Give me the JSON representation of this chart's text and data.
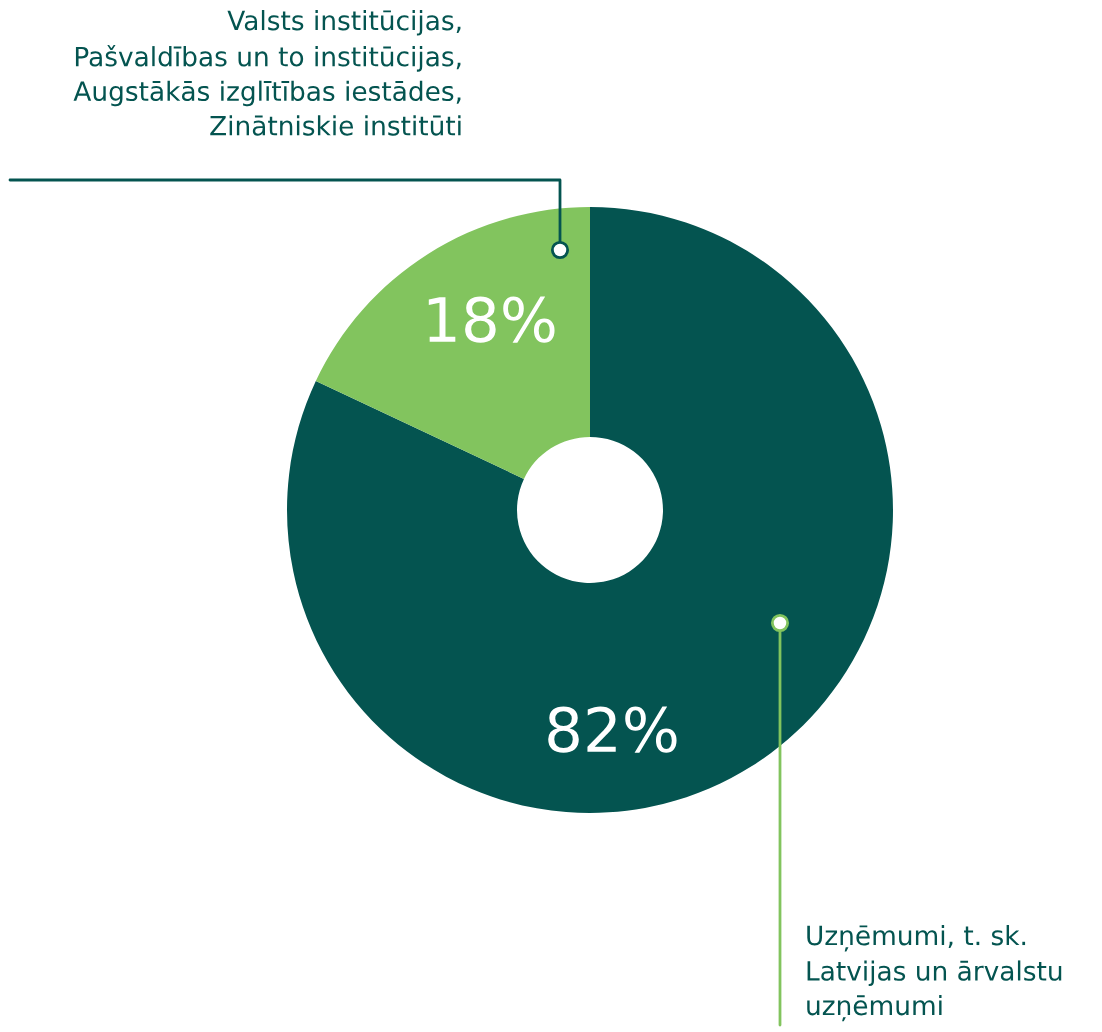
{
  "chart_data": {
    "type": "donut",
    "categories": [
      "Uzņēmumi, t. sk.\nLatvijas un ārvalstu\nuzņēmumi",
      "Valsts institūcijas,\nPašvaldības un to institūcijas,\nAugstākās izglītības iestādes,\nZinātniskie institūti"
    ],
    "values": [
      82,
      18
    ],
    "colors": [
      "#045450",
      "#82c45e"
    ],
    "value_labels": [
      "82%",
      "18%"
    ]
  }
}
